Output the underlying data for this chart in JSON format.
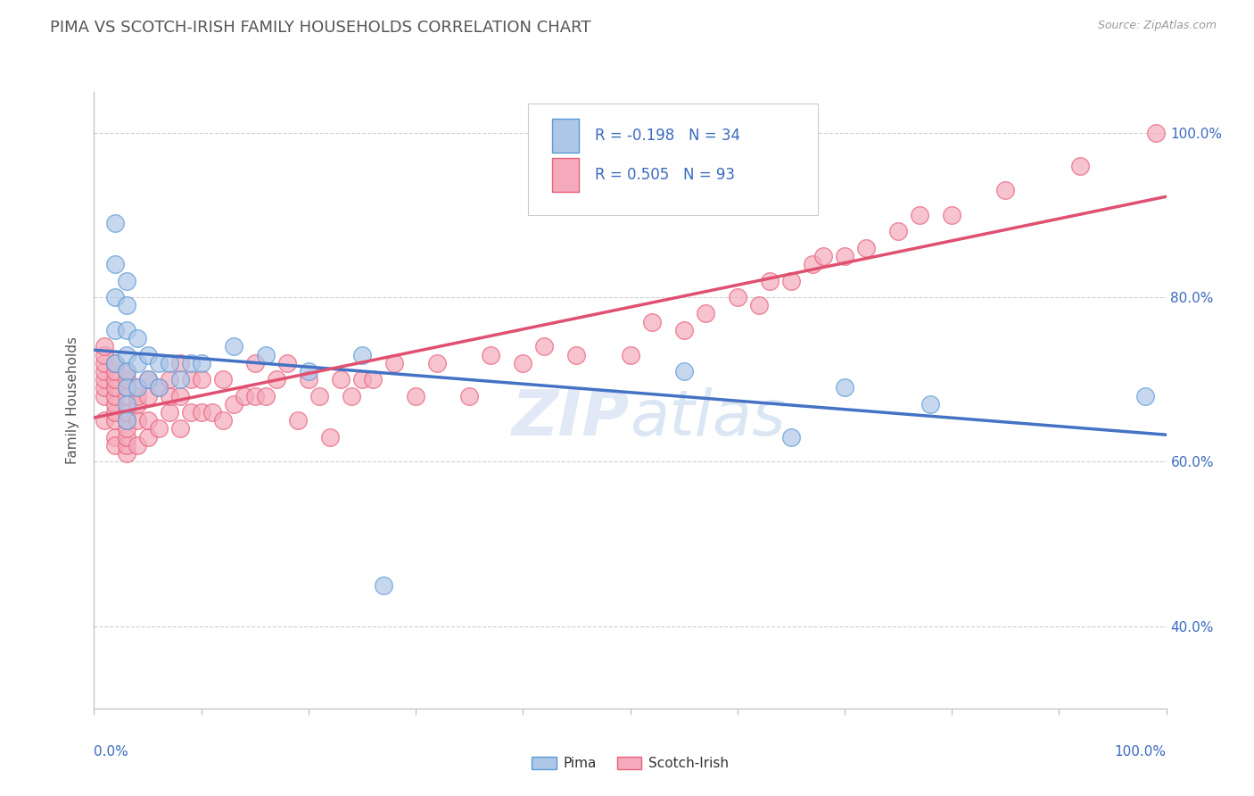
{
  "title": "PIMA VS SCOTCH-IRISH FAMILY HOUSEHOLDS CORRELATION CHART",
  "source_text": "Source: ZipAtlas.com",
  "ylabel": "Family Households",
  "legend_pima_r": "R = -0.198",
  "legend_pima_n": "N = 34",
  "legend_scotch_r": "R = 0.505",
  "legend_scotch_n": "N = 93",
  "pima_color": "#aec6e8",
  "scotch_color": "#f4aabb",
  "pima_edge_color": "#5b9bd5",
  "scotch_edge_color": "#e8607a",
  "pima_line_color": "#4472c4",
  "scotch_line_color": "#e05070",
  "legend_text_color": "#3a6abf",
  "title_color": "#555555",
  "background_color": "#ffffff",
  "grid_color": "#d0d0d0",
  "axis_color": "#bbbbbb",
  "watermark": "ZIPatlas",
  "watermark_color": "#dce8f5",
  "pima_data_x": [
    0.02,
    0.02,
    0.02,
    0.02,
    0.02,
    0.03,
    0.03,
    0.03,
    0.03,
    0.03,
    0.03,
    0.03,
    0.03,
    0.04,
    0.04,
    0.04,
    0.05,
    0.05,
    0.06,
    0.06,
    0.07,
    0.08,
    0.09,
    0.1,
    0.13,
    0.16,
    0.2,
    0.25,
    0.27,
    0.55,
    0.65,
    0.7,
    0.78,
    0.98
  ],
  "pima_data_y": [
    0.89,
    0.84,
    0.8,
    0.76,
    0.72,
    0.82,
    0.79,
    0.76,
    0.73,
    0.71,
    0.69,
    0.67,
    0.65,
    0.75,
    0.72,
    0.69,
    0.73,
    0.7,
    0.72,
    0.69,
    0.72,
    0.7,
    0.72,
    0.72,
    0.74,
    0.73,
    0.71,
    0.73,
    0.45,
    0.71,
    0.63,
    0.69,
    0.67,
    0.68
  ],
  "scotch_data_x": [
    0.01,
    0.01,
    0.01,
    0.01,
    0.01,
    0.01,
    0.01,
    0.01,
    0.02,
    0.02,
    0.02,
    0.02,
    0.02,
    0.02,
    0.02,
    0.02,
    0.02,
    0.02,
    0.03,
    0.03,
    0.03,
    0.03,
    0.03,
    0.03,
    0.03,
    0.03,
    0.03,
    0.03,
    0.04,
    0.04,
    0.04,
    0.04,
    0.04,
    0.05,
    0.05,
    0.05,
    0.05,
    0.06,
    0.06,
    0.07,
    0.07,
    0.07,
    0.08,
    0.08,
    0.08,
    0.09,
    0.09,
    0.1,
    0.1,
    0.11,
    0.12,
    0.12,
    0.13,
    0.14,
    0.15,
    0.15,
    0.16,
    0.17,
    0.18,
    0.19,
    0.2,
    0.21,
    0.22,
    0.23,
    0.24,
    0.25,
    0.26,
    0.28,
    0.3,
    0.32,
    0.35,
    0.37,
    0.4,
    0.42,
    0.45,
    0.5,
    0.52,
    0.55,
    0.57,
    0.6,
    0.62,
    0.63,
    0.65,
    0.67,
    0.68,
    0.7,
    0.72,
    0.75,
    0.77,
    0.8,
    0.85,
    0.92,
    0.99
  ],
  "scotch_data_y": [
    0.68,
    0.69,
    0.7,
    0.71,
    0.72,
    0.73,
    0.74,
    0.65,
    0.63,
    0.65,
    0.66,
    0.67,
    0.68,
    0.69,
    0.7,
    0.71,
    0.72,
    0.62,
    0.61,
    0.62,
    0.63,
    0.64,
    0.65,
    0.66,
    0.68,
    0.69,
    0.7,
    0.71,
    0.62,
    0.65,
    0.67,
    0.68,
    0.69,
    0.63,
    0.65,
    0.68,
    0.7,
    0.64,
    0.69,
    0.66,
    0.68,
    0.7,
    0.64,
    0.68,
    0.72,
    0.66,
    0.7,
    0.66,
    0.7,
    0.66,
    0.65,
    0.7,
    0.67,
    0.68,
    0.68,
    0.72,
    0.68,
    0.7,
    0.72,
    0.65,
    0.7,
    0.68,
    0.63,
    0.7,
    0.68,
    0.7,
    0.7,
    0.72,
    0.68,
    0.72,
    0.68,
    0.73,
    0.72,
    0.74,
    0.73,
    0.73,
    0.77,
    0.76,
    0.78,
    0.8,
    0.79,
    0.82,
    0.82,
    0.84,
    0.85,
    0.85,
    0.86,
    0.88,
    0.9,
    0.9,
    0.93,
    0.96,
    1.0
  ],
  "xlim": [
    0.0,
    1.0
  ],
  "ylim": [
    0.3,
    1.05
  ],
  "yticks": [
    0.4,
    0.6,
    0.8,
    1.0
  ],
  "ytick_labels": [
    "40.0%",
    "60.0%",
    "80.0%",
    "100.0%"
  ]
}
